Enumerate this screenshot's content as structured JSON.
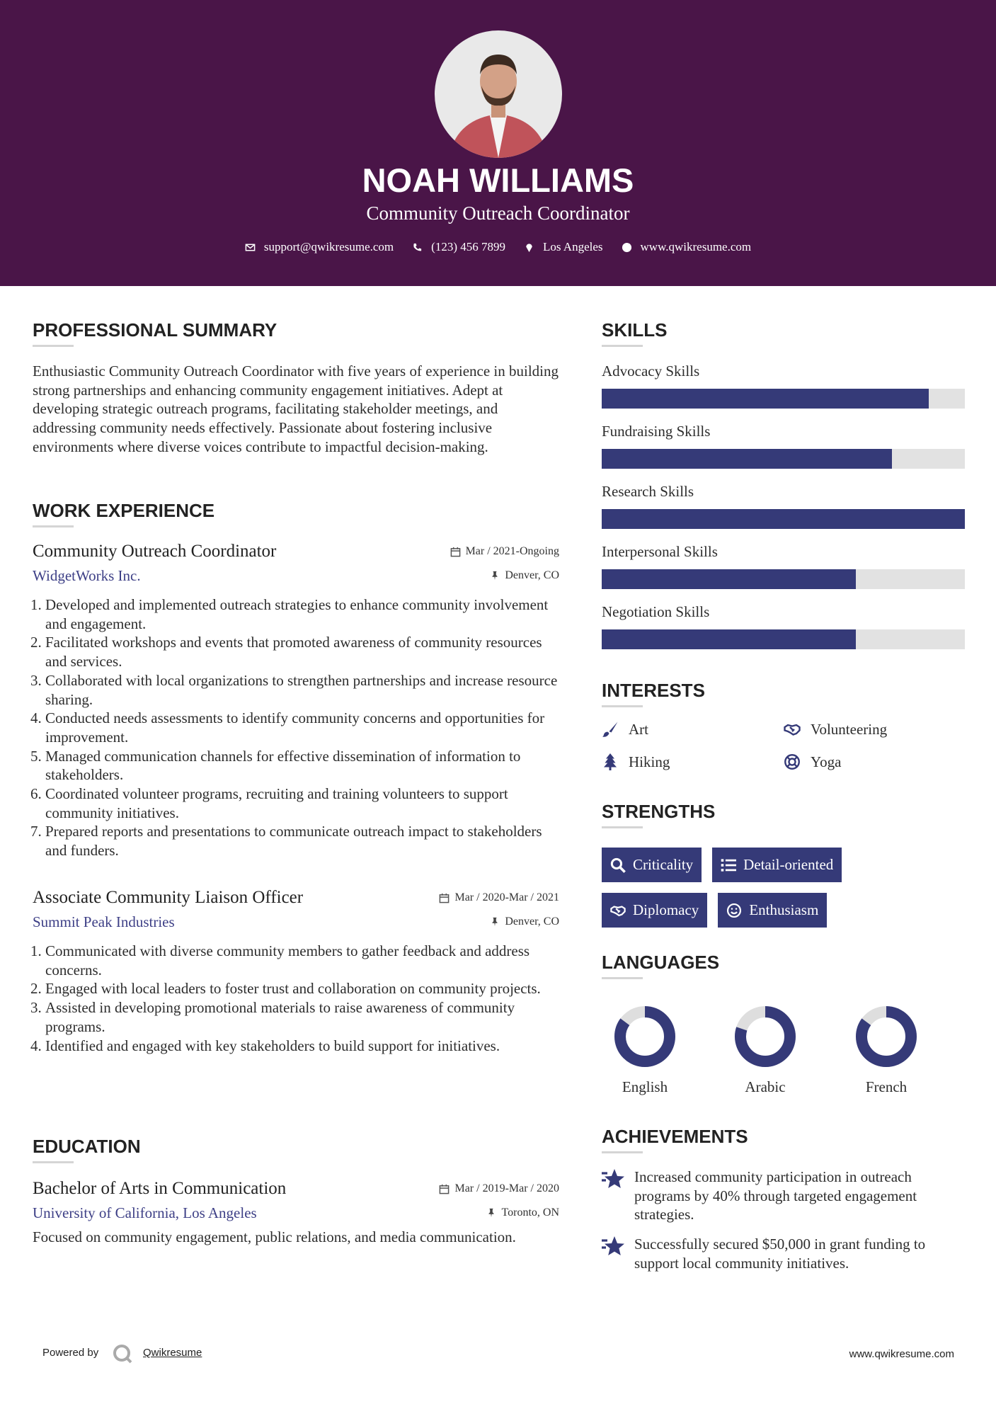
{
  "header": {
    "name": "NOAH WILLIAMS",
    "title": "Community Outreach Coordinator",
    "contact": {
      "email": "support@qwikresume.com",
      "phone": "(123) 456 7899",
      "location": "Los Angeles",
      "website": "www.qwikresume.com"
    }
  },
  "summary": {
    "heading": "PROFESSIONAL SUMMARY",
    "text": "Enthusiastic Community Outreach Coordinator with five years of experience in building strong partnerships and enhancing community engagement initiatives. Adept at developing strategic outreach programs, facilitating stakeholder meetings, and addressing community needs effectively. Passionate about fostering inclusive environments where diverse voices contribute to impactful decision-making."
  },
  "work": {
    "heading": "WORK EXPERIENCE",
    "jobs": [
      {
        "title": "Community Outreach Coordinator",
        "company": "WidgetWorks Inc.",
        "date": "Mar / 2021-Ongoing",
        "location": "Denver, CO",
        "bullets": [
          "Developed and implemented outreach strategies to enhance community involvement and engagement.",
          "Facilitated workshops and events that promoted awareness of community resources and services.",
          "Collaborated with local organizations to strengthen partnerships and increase resource sharing.",
          "Conducted needs assessments to identify community concerns and opportunities for improvement.",
          "Managed communication channels for effective dissemination of information to stakeholders.",
          "Coordinated volunteer programs, recruiting and training volunteers to support community initiatives.",
          "Prepared reports and presentations to communicate outreach impact to stakeholders and funders."
        ]
      },
      {
        "title": "Associate Community Liaison Officer",
        "company": "Summit Peak Industries",
        "date": "Mar / 2020-Mar / 2021",
        "location": "Denver, CO",
        "bullets": [
          "Communicated with diverse community members to gather feedback and address concerns.",
          "Engaged with local leaders to foster trust and collaboration on community projects.",
          "Assisted in developing promotional materials to raise awareness of community programs.",
          "Identified and engaged with key stakeholders to build support for initiatives."
        ]
      }
    ]
  },
  "education": {
    "heading": "EDUCATION",
    "items": [
      {
        "degree": "Bachelor of Arts in Communication",
        "school": "University of California, Los Angeles",
        "date": "Mar / 2019-Mar / 2020",
        "location": "Toronto, ON",
        "description": "Focused on community engagement, public relations, and media communication."
      }
    ]
  },
  "skills": {
    "heading": "SKILLS",
    "items": [
      {
        "name": "Advocacy Skills",
        "level": 90
      },
      {
        "name": "Fundraising Skills",
        "level": 80
      },
      {
        "name": "Research Skills",
        "level": 100
      },
      {
        "name": "Interpersonal Skills",
        "level": 70
      },
      {
        "name": "Negotiation Skills",
        "level": 70
      }
    ]
  },
  "interests": {
    "heading": "INTERESTS",
    "items": [
      "Art",
      "Volunteering",
      "Hiking",
      "Yoga"
    ]
  },
  "strengths": {
    "heading": "STRENGTHS",
    "items": [
      "Criticality",
      "Detail-oriented",
      "Diplomacy",
      "Enthusiasm"
    ]
  },
  "languages": {
    "heading": "LANGUAGES",
    "items": [
      {
        "name": "English",
        "level": 85
      },
      {
        "name": "Arabic",
        "level": 80
      },
      {
        "name": "French",
        "level": 85
      }
    ]
  },
  "achievements": {
    "heading": "ACHIEVEMENTS",
    "items": [
      "Increased community participation in outreach programs by 40% through targeted engagement strategies.",
      "Successfully secured $50,000 in grant funding to support local community initiatives."
    ]
  },
  "footer": {
    "powered_by": "Powered by",
    "brand": "Qwikresume",
    "website": "www.qwikresume.com"
  }
}
